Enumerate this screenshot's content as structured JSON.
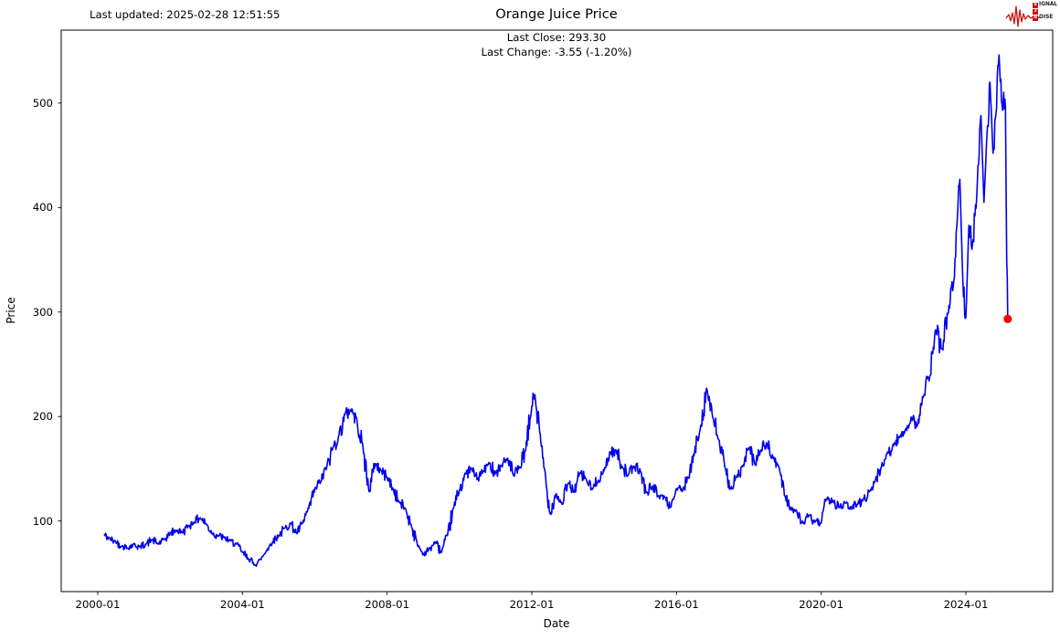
{
  "header": {
    "last_updated": "Last updated: 2025-02-28 12:51:55",
    "title": "Orange Juice Price",
    "subtitle_close": "Last Close: 293.30",
    "subtitle_change": "Last Change: -3.55 (-1.20%)"
  },
  "logo": {
    "badge1": "S",
    "rest1": "IGNAL",
    "badge2": "2",
    "badge3": "N",
    "rest3": "OISE",
    "wave_color": "#cc1111"
  },
  "chart_data": {
    "type": "line",
    "title": "Orange Juice Price",
    "xlabel": "Date",
    "ylabel": "Price",
    "legend": null,
    "grid": false,
    "line_color": "#0000ee",
    "end_marker": {
      "date": "2025-02-28",
      "value": 293.3,
      "color": "#ff0000"
    },
    "last_close": 293.3,
    "last_change": -3.55,
    "last_change_pct": -1.2,
    "x_tick_labels": [
      "2000-01",
      "2004-01",
      "2008-01",
      "2012-01",
      "2016-01",
      "2020-01",
      "2024-01"
    ],
    "y_ticks": [
      100,
      200,
      300,
      400,
      500
    ],
    "xlim_t": [
      1998.99,
      2026.4
    ],
    "ylim": [
      32.4,
      569.8
    ],
    "series": [
      {
        "name": "Orange Juice Price",
        "points": [
          [
            "2000-03",
            87
          ],
          [
            "2000-05",
            83
          ],
          [
            "2000-07",
            80
          ],
          [
            "2000-09",
            76
          ],
          [
            "2000-11",
            74
          ],
          [
            "2001-01",
            78
          ],
          [
            "2001-03",
            75
          ],
          [
            "2001-05",
            78
          ],
          [
            "2001-07",
            82
          ],
          [
            "2001-09",
            78
          ],
          [
            "2001-11",
            82
          ],
          [
            "2002-01",
            88
          ],
          [
            "2002-03",
            91
          ],
          [
            "2002-05",
            89
          ],
          [
            "2002-07",
            95
          ],
          [
            "2002-09",
            99
          ],
          [
            "2002-11",
            103
          ],
          [
            "2003-01",
            97
          ],
          [
            "2003-03",
            88
          ],
          [
            "2003-05",
            86
          ],
          [
            "2003-07",
            84
          ],
          [
            "2003-09",
            81
          ],
          [
            "2003-11",
            78
          ],
          [
            "2004-01",
            70
          ],
          [
            "2004-03",
            64
          ],
          [
            "2004-05",
            58
          ],
          [
            "2004-07",
            63
          ],
          [
            "2004-09",
            72
          ],
          [
            "2004-11",
            80
          ],
          [
            "2005-01",
            86
          ],
          [
            "2005-03",
            93
          ],
          [
            "2005-05",
            98
          ],
          [
            "2005-07",
            88
          ],
          [
            "2005-09",
            98
          ],
          [
            "2005-11",
            112
          ],
          [
            "2006-01",
            130
          ],
          [
            "2006-03",
            138
          ],
          [
            "2006-05",
            152
          ],
          [
            "2006-07",
            170
          ],
          [
            "2006-09",
            182
          ],
          [
            "2006-11",
            202
          ],
          [
            "2007-01",
            207
          ],
          [
            "2007-03",
            196
          ],
          [
            "2007-05",
            170
          ],
          [
            "2007-07",
            128
          ],
          [
            "2007-09",
            155
          ],
          [
            "2007-11",
            148
          ],
          [
            "2008-01",
            142
          ],
          [
            "2008-03",
            130
          ],
          [
            "2008-05",
            118
          ],
          [
            "2008-07",
            112
          ],
          [
            "2008-09",
            96
          ],
          [
            "2008-11",
            78
          ],
          [
            "2009-01",
            68
          ],
          [
            "2009-03",
            73
          ],
          [
            "2009-05",
            80
          ],
          [
            "2009-07",
            70
          ],
          [
            "2009-09",
            86
          ],
          [
            "2009-11",
            112
          ],
          [
            "2010-01",
            130
          ],
          [
            "2010-03",
            145
          ],
          [
            "2010-05",
            150
          ],
          [
            "2010-07",
            140
          ],
          [
            "2010-09",
            148
          ],
          [
            "2010-11",
            155
          ],
          [
            "2011-01",
            146
          ],
          [
            "2011-03",
            153
          ],
          [
            "2011-05",
            160
          ],
          [
            "2011-07",
            143
          ],
          [
            "2011-09",
            151
          ],
          [
            "2011-11",
            168
          ],
          [
            "2012-01",
            210
          ],
          [
            "2012-02",
            221
          ],
          [
            "2012-04",
            175
          ],
          [
            "2012-06",
            130
          ],
          [
            "2012-07",
            107
          ],
          [
            "2012-09",
            126
          ],
          [
            "2012-11",
            116
          ],
          [
            "2013-01",
            136
          ],
          [
            "2013-03",
            128
          ],
          [
            "2013-05",
            146
          ],
          [
            "2013-07",
            140
          ],
          [
            "2013-09",
            130
          ],
          [
            "2013-11",
            139
          ],
          [
            "2014-01",
            148
          ],
          [
            "2014-03",
            166
          ],
          [
            "2014-05",
            167
          ],
          [
            "2014-07",
            152
          ],
          [
            "2014-09",
            144
          ],
          [
            "2014-11",
            152
          ],
          [
            "2015-01",
            148
          ],
          [
            "2015-03",
            127
          ],
          [
            "2015-05",
            133
          ],
          [
            "2015-07",
            124
          ],
          [
            "2015-09",
            123
          ],
          [
            "2015-11",
            113
          ],
          [
            "2016-01",
            131
          ],
          [
            "2016-03",
            129
          ],
          [
            "2016-05",
            141
          ],
          [
            "2016-07",
            166
          ],
          [
            "2016-09",
            191
          ],
          [
            "2016-11",
            227
          ],
          [
            "2017-01",
            199
          ],
          [
            "2017-03",
            178
          ],
          [
            "2017-05",
            152
          ],
          [
            "2017-07",
            131
          ],
          [
            "2017-09",
            142
          ],
          [
            "2017-11",
            152
          ],
          [
            "2018-01",
            170
          ],
          [
            "2018-03",
            154
          ],
          [
            "2018-05",
            168
          ],
          [
            "2018-07",
            174
          ],
          [
            "2018-09",
            160
          ],
          [
            "2018-11",
            152
          ],
          [
            "2019-01",
            124
          ],
          [
            "2019-03",
            112
          ],
          [
            "2019-05",
            108
          ],
          [
            "2019-07",
            98
          ],
          [
            "2019-09",
            105
          ],
          [
            "2019-11",
            99
          ],
          [
            "2020-01",
            98
          ],
          [
            "2020-03",
            122
          ],
          [
            "2020-05",
            119
          ],
          [
            "2020-07",
            113
          ],
          [
            "2020-09",
            117
          ],
          [
            "2020-11",
            112
          ],
          [
            "2021-01",
            116
          ],
          [
            "2021-03",
            121
          ],
          [
            "2021-05",
            128
          ],
          [
            "2021-07",
            139
          ],
          [
            "2021-09",
            152
          ],
          [
            "2021-11",
            166
          ],
          [
            "2022-01",
            172
          ],
          [
            "2022-03",
            180
          ],
          [
            "2022-05",
            188
          ],
          [
            "2022-07",
            199
          ],
          [
            "2022-09",
            192
          ],
          [
            "2022-11",
            220
          ],
          [
            "2023-01",
            238
          ],
          [
            "2023-03",
            283
          ],
          [
            "2023-05",
            265
          ],
          [
            "2023-07",
            298
          ],
          [
            "2023-09",
            330
          ],
          [
            "2023-10",
            382
          ],
          [
            "2023-11",
            427
          ],
          [
            "2023-12",
            330
          ],
          [
            "2024-01",
            295
          ],
          [
            "2024-02",
            383
          ],
          [
            "2024-03",
            360
          ],
          [
            "2024-04",
            392
          ],
          [
            "2024-05",
            440
          ],
          [
            "2024-06",
            488
          ],
          [
            "2024-07",
            405
          ],
          [
            "2024-08",
            470
          ],
          [
            "2024-09",
            520
          ],
          [
            "2024-10",
            452
          ],
          [
            "2024-11",
            490
          ],
          [
            "2024-12",
            546
          ],
          [
            "2025-01",
            498
          ],
          [
            "2025-02-05",
            497
          ],
          [
            "2025-02-18",
            348
          ],
          [
            "2025-02-28",
            293.3
          ]
        ]
      }
    ]
  }
}
